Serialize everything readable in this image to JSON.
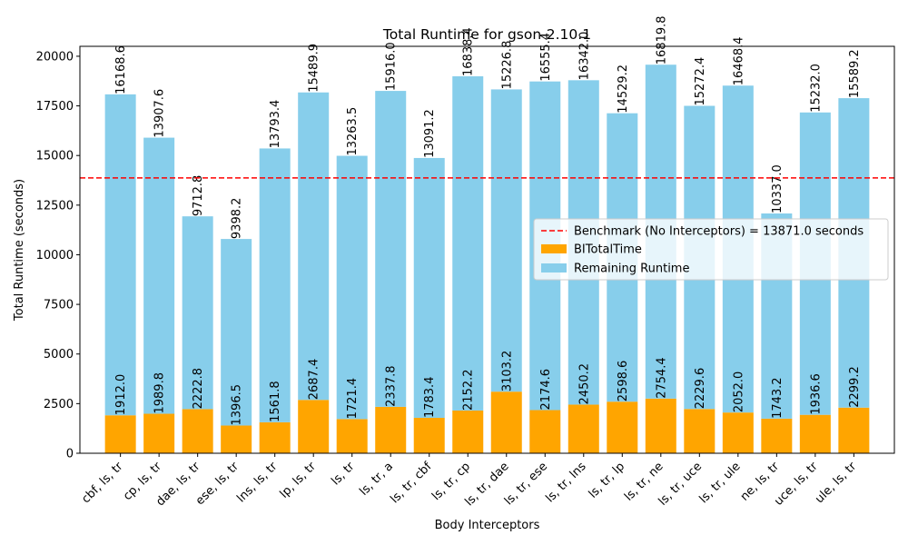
{
  "chart_data": {
    "type": "bar",
    "stacked": true,
    "title": "Total Runtime for gson-2.10.1",
    "xlabel": "Body Interceptors",
    "ylabel": "Total Runtime (seconds)",
    "ylim": [
      0,
      20500
    ],
    "yticks": [
      0,
      2500,
      5000,
      7500,
      10000,
      12500,
      15000,
      17500,
      20000
    ],
    "ytick_labels": [
      "0",
      "2500",
      "5000",
      "7500",
      "10000",
      "12500",
      "15000",
      "17500",
      "20000"
    ],
    "grid": false,
    "legend_position": "center-right",
    "categories": [
      "cbf, ls, tr",
      "cp, ls, tr",
      "dae, ls, tr",
      "ese, ls, tr",
      "lns, ls, tr",
      "lp, ls, tr",
      "ls, tr",
      "ls, tr, a",
      "ls, tr, cbf",
      "ls, tr, cp",
      "ls, tr, dae",
      "ls, tr, ese",
      "ls, tr, lns",
      "ls, tr, lp",
      "ls, tr, ne",
      "ls, tr, uce",
      "ls, tr, ule",
      "ne, ls, tr",
      "uce, ls, tr",
      "ule, ls, tr"
    ],
    "series": [
      {
        "name": "BITotalTime",
        "color": "#ffa500",
        "values": [
          1912.0,
          1989.8,
          2222.8,
          1396.5,
          1561.8,
          2687.4,
          1721.4,
          2337.8,
          1783.4,
          2152.2,
          3103.2,
          2174.6,
          2450.2,
          2598.6,
          2754.4,
          2229.6,
          2052.0,
          1743.2,
          1936.6,
          2299.2
        ],
        "labels": [
          "1912.0",
          "1989.8",
          "2222.8",
          "1396.5",
          "1561.8",
          "2687.4",
          "1721.4",
          "2337.8",
          "1783.4",
          "2152.2",
          "3103.2",
          "2174.6",
          "2450.2",
          "2598.6",
          "2754.4",
          "2229.6",
          "2052.0",
          "1743.2",
          "1936.6",
          "2299.2"
        ]
      },
      {
        "name": "Remaining Runtime",
        "color": "#87ceeb",
        "values": [
          16168.6,
          13907.6,
          9712.8,
          9398.2,
          13793.4,
          15489.9,
          13263.5,
          15916.0,
          13091.2,
          16838.4,
          15226.8,
          16555.4,
          16342.0,
          14529.2,
          16819.8,
          15272.4,
          16468.4,
          10337.0,
          15232.0,
          15589.2
        ],
        "labels": [
          "16168.6",
          "13907.6",
          "9712.8",
          "9398.2",
          "13793.4",
          "15489.9",
          "13263.5",
          "15916.0",
          "13091.2",
          "16838.4",
          "15226.8",
          "16555.4",
          "16342.0",
          "14529.2",
          "16819.8",
          "15272.4",
          "16468.4",
          "10337.0",
          "15232.0",
          "15589.2"
        ]
      }
    ],
    "benchmark": {
      "label": "Benchmark (No Interceptors) = 13871.0 seconds",
      "value": 13871.0,
      "color": "#ff0000",
      "style": "dashed"
    }
  }
}
